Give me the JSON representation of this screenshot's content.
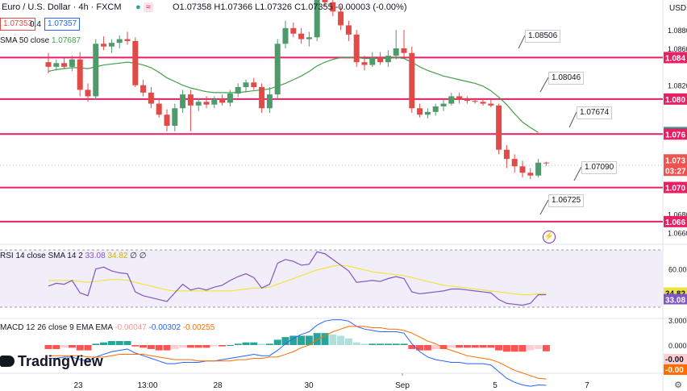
{
  "header": {
    "title": "Euro / U.S. Dollar · 4h · FXCM",
    "ohlc": "O1.07358 H1.07366 L1.07326 C1.07355 -0.00003 (-0.00%)",
    "sell_price": "1.07353",
    "spread": "0.4",
    "buy_price": "1.07357",
    "sma_label": "SMA 50 close",
    "sma_value": "1.07687",
    "currency": "USD"
  },
  "rsi_legend": {
    "label": "RSI 14 close SMA 14 2",
    "rsi_value": "33.08",
    "sma_value": "34.82",
    "extra1": "∅",
    "extra2": "∅"
  },
  "macd_legend": {
    "label": "MACD 12 26 close 9 EMA EMA",
    "histogram_value": "-0.00047",
    "macd_value": "-0.00302",
    "signal_value": "-0.00255"
  },
  "brand": "TradingView",
  "price_labels": {
    "l1": "1.08506",
    "l2": "1.08046",
    "l3": "1.07674",
    "l4": "1.07090",
    "l5": "1.06725"
  },
  "chart_data": {
    "type": "candlestick",
    "timeframe": "4h",
    "ylim": [
      1.065,
      1.0895
    ],
    "x_ticks": [
      "23",
      "13:00",
      "28",
      "30",
      "Sep",
      "5",
      "7"
    ],
    "y_ticks": [
      "1.0880",
      "1.0860",
      "1.0820",
      "1.0680",
      "1.0660"
    ],
    "price_axis_tags": [
      {
        "value": "1.084",
        "color": "#e91e63"
      },
      {
        "value": "1.080",
        "color": "#e91e63"
      },
      {
        "value": "1.076",
        "color": "#26a69a"
      },
      {
        "value": "1.076",
        "color": "#e91e63"
      },
      {
        "value": "1.073",
        "color": "#ef5350"
      },
      {
        "value": "03:27",
        "color": "#ef5350"
      },
      {
        "value": "1.070",
        "color": "#e91e63"
      },
      {
        "value": "1.066",
        "color": "#e91e63"
      }
    ],
    "horizontal_levels": [
      1.085,
      1.0805,
      1.0767,
      1.0709,
      1.0672
    ],
    "level_annotations": [
      1.08506,
      1.08046,
      1.07674,
      1.0709,
      1.06725
    ],
    "candles": [
      [
        1.0845,
        1.0855,
        1.0833,
        1.084
      ],
      [
        1.084,
        1.0848,
        1.0836,
        1.0844
      ],
      [
        1.0844,
        1.085,
        1.0838,
        1.084
      ],
      [
        1.084,
        1.0852,
        1.0835,
        1.0848
      ],
      [
        1.0848,
        1.0856,
        1.0808,
        1.0815
      ],
      [
        1.0815,
        1.0822,
        1.0802,
        1.0808
      ],
      [
        1.0808,
        1.087,
        1.0804,
        1.0865
      ],
      [
        1.0865,
        1.0873,
        1.0858,
        1.0862
      ],
      [
        1.0862,
        1.087,
        1.0855,
        1.0866
      ],
      [
        1.0866,
        1.0874,
        1.086,
        1.087
      ],
      [
        1.087,
        1.0878,
        1.0864,
        1.0868
      ],
      [
        1.0868,
        1.0872,
        1.0818,
        1.082
      ],
      [
        1.082,
        1.0826,
        1.0808,
        1.0812
      ],
      [
        1.0812,
        1.0818,
        1.0795,
        1.08
      ],
      [
        1.08,
        1.0806,
        1.0785,
        1.0788
      ],
      [
        1.0788,
        1.0794,
        1.077,
        1.0776
      ],
      [
        1.0776,
        1.08,
        1.077,
        1.0795
      ],
      [
        1.0795,
        1.0815,
        1.079,
        1.081
      ],
      [
        1.081,
        1.0815,
        1.077,
        1.0798
      ],
      [
        1.0798,
        1.0806,
        1.0792,
        1.0802
      ],
      [
        1.0802,
        1.0808,
        1.0795,
        1.0799
      ],
      [
        1.0799,
        1.0808,
        1.0795,
        1.0805
      ],
      [
        1.0805,
        1.081,
        1.0798,
        1.0801
      ],
      [
        1.0801,
        1.0815,
        1.0797,
        1.0811
      ],
      [
        1.0811,
        1.0822,
        1.0807,
        1.0818
      ],
      [
        1.0818,
        1.0826,
        1.0812,
        1.0823
      ],
      [
        1.0823,
        1.0828,
        1.0815,
        1.0818
      ],
      [
        1.0818,
        1.0822,
        1.079,
        1.0795
      ],
      [
        1.0795,
        1.0818,
        1.079,
        1.081
      ],
      [
        1.081,
        1.087,
        1.0805,
        1.0865
      ],
      [
        1.0865,
        1.089,
        1.086,
        1.0882
      ],
      [
        1.0882,
        1.0888,
        1.0872,
        1.0876
      ],
      [
        1.0876,
        1.0882,
        1.0865,
        1.087
      ],
      [
        1.087,
        1.0878,
        1.0862,
        1.0872
      ],
      [
        1.0872,
        1.0935,
        1.0868,
        1.0925
      ],
      [
        1.0925,
        1.0935,
        1.0905,
        1.091
      ],
      [
        1.091,
        1.0918,
        1.0895,
        1.09
      ],
      [
        1.09,
        1.0906,
        1.088,
        1.0885
      ],
      [
        1.0885,
        1.089,
        1.0868,
        1.0875
      ],
      [
        1.0875,
        1.088,
        1.084,
        1.0845
      ],
      [
        1.0845,
        1.0852,
        1.0836,
        1.0842
      ],
      [
        1.0842,
        1.0856,
        1.084,
        1.085
      ],
      [
        1.085,
        1.0856,
        1.0842,
        1.0845
      ],
      [
        1.0845,
        1.0858,
        1.084,
        1.0852
      ],
      [
        1.0852,
        1.088,
        1.0848,
        1.086
      ],
      [
        1.086,
        1.088,
        1.085,
        1.0855
      ],
      [
        1.0855,
        1.0862,
        1.079,
        1.0795
      ],
      [
        1.0795,
        1.08,
        1.0785,
        1.0788
      ],
      [
        1.0788,
        1.0795,
        1.0784,
        1.0791
      ],
      [
        1.0791,
        1.08,
        1.0787,
        1.0797
      ],
      [
        1.0797,
        1.0805,
        1.0792,
        1.08
      ],
      [
        1.08,
        1.0812,
        1.0798,
        1.0808
      ],
      [
        1.0808,
        1.0812,
        1.08,
        1.0805
      ],
      [
        1.0805,
        1.0808,
        1.08,
        1.0803
      ],
      [
        1.0803,
        1.0806,
        1.08,
        1.0802
      ],
      [
        1.0802,
        1.0806,
        1.0798,
        1.08
      ],
      [
        1.08,
        1.0804,
        1.0796,
        1.0798
      ],
      [
        1.0798,
        1.08,
        1.0745,
        1.075
      ],
      [
        1.075,
        1.0755,
        1.073,
        1.074
      ],
      [
        1.074,
        1.0745,
        1.0725,
        1.0732
      ],
      [
        1.0732,
        1.0738,
        1.072,
        1.0725
      ],
      [
        1.0725,
        1.073,
        1.0718,
        1.0722
      ],
      [
        1.0722,
        1.074,
        1.072,
        1.0736
      ],
      [
        1.0736,
        1.0737,
        1.07326,
        1.07355
      ]
    ],
    "sma50": [
      1.0835,
      1.0837,
      1.0838,
      1.0839,
      1.0839,
      1.0838,
      1.084,
      1.0842,
      1.0843,
      1.0844,
      1.0845,
      1.0844,
      1.0842,
      1.0839,
      1.0834,
      1.0828,
      1.0824,
      1.082,
      1.0817,
      1.0815,
      1.0813,
      1.0812,
      1.0812,
      1.0812,
      1.0812,
      1.0813,
      1.0814,
      1.0815,
      1.0816,
      1.0819,
      1.0822,
      1.0826,
      1.083,
      1.0835,
      1.0841,
      1.0845,
      1.0848,
      1.085,
      1.085,
      1.085,
      1.0849,
      1.0849,
      1.0849,
      1.0849,
      1.085,
      1.0849,
      1.0845,
      1.084,
      1.0836,
      1.0833,
      1.083,
      1.0828,
      1.0826,
      1.0824,
      1.0822,
      1.0819,
      1.0814,
      1.0807,
      1.0799,
      1.0789,
      1.078,
      1.0774,
      1.07687
    ],
    "rsi": {
      "ylim": [
        20,
        80
      ],
      "y_ticks": [
        "60.00",
        "34.82",
        "33.08",
        "3.000"
      ],
      "rsi_values": [
        42,
        45,
        44,
        48,
        35,
        32,
        60,
        62,
        58,
        56,
        55,
        36,
        32,
        30,
        28,
        26,
        35,
        44,
        38,
        40,
        38,
        41,
        43,
        48,
        52,
        55,
        51,
        40,
        44,
        66,
        70,
        68,
        64,
        65,
        78,
        76,
        70,
        64,
        58,
        46,
        47,
        48,
        47,
        50,
        52,
        50,
        36,
        34,
        35,
        36,
        37,
        39,
        39,
        38,
        37,
        36,
        35,
        28,
        24,
        23,
        22,
        24,
        33,
        33.08
      ],
      "sma_values": [
        48,
        48,
        48,
        48,
        47,
        46,
        47,
        48,
        49,
        49,
        48,
        46,
        44,
        42,
        40,
        38,
        37,
        37,
        37,
        37,
        37,
        37,
        37,
        37,
        38,
        39,
        40,
        40,
        41,
        44,
        47,
        50,
        53,
        56,
        59,
        61,
        63,
        64,
        63,
        61,
        59,
        57,
        56,
        55,
        54,
        53,
        51,
        49,
        47,
        45,
        43,
        42,
        41,
        40,
        39,
        38,
        37,
        36,
        35,
        34,
        33,
        33,
        34,
        34.82
      ]
    },
    "macd": {
      "histogram": [
        -0.0003,
        -0.0003,
        -0.0002,
        -0.0002,
        -0.0004,
        -0.0004,
        0.0001,
        0.0002,
        0.0003,
        0.0003,
        0.0003,
        -0.0001,
        -0.0002,
        -0.0003,
        -0.0004,
        -0.0004,
        -0.0003,
        -0.0002,
        -0.0002,
        -0.0002,
        -0.0002,
        -0.0001,
        -0.0001,
        0.0,
        0.0001,
        0.0002,
        0.0002,
        0.0001,
        0.0001,
        0.0004,
        0.0006,
        0.0007,
        0.0007,
        0.0007,
        0.0009,
        0.0009,
        0.0008,
        0.0007,
        0.0005,
        0.0002,
        0.0001,
        0.0001,
        0.0001,
        0.0001,
        0.0001,
        0.0001,
        -0.0003,
        -0.0004,
        -0.0004,
        -0.0003,
        -0.0003,
        -0.0002,
        -0.0002,
        -0.0002,
        -0.0002,
        -0.0002,
        -0.0002,
        -0.0004,
        -0.0005,
        -0.0005,
        -0.0005,
        -0.0004,
        -0.0003,
        -0.00047
      ],
      "macd_values": [
        -0.001,
        -0.001,
        -0.0009,
        -0.0009,
        -0.0011,
        -0.0012,
        -0.0009,
        -0.0007,
        -0.0005,
        -0.0004,
        -0.0003,
        -0.0006,
        -0.0008,
        -0.001,
        -0.0012,
        -0.0014,
        -0.0014,
        -0.0013,
        -0.0013,
        -0.0013,
        -0.0012,
        -0.0012,
        -0.0011,
        -0.001,
        -0.0009,
        -0.0008,
        -0.0007,
        -0.0008,
        -0.0008,
        -0.0004,
        0.0001,
        0.0005,
        0.0008,
        0.001,
        0.0015,
        0.0018,
        0.0019,
        0.0019,
        0.0018,
        0.0014,
        0.0012,
        0.0011,
        0.001,
        0.001,
        0.001,
        0.0009,
        0.0001,
        -0.0005,
        -0.0009,
        -0.0011,
        -0.0012,
        -0.0013,
        -0.0013,
        -0.0014,
        -0.0014,
        -0.0014,
        -0.0015,
        -0.002,
        -0.0025,
        -0.0028,
        -0.003,
        -0.0031,
        -0.003,
        -0.00302
      ],
      "signal_values": [
        -0.0008,
        -0.0008,
        -0.0008,
        -0.0008,
        -0.0008,
        -0.0009,
        -0.0009,
        -0.0009,
        -0.0008,
        -0.0007,
        -0.0007,
        -0.0007,
        -0.0007,
        -0.0008,
        -0.0009,
        -0.001,
        -0.0011,
        -0.0011,
        -0.0011,
        -0.0012,
        -0.0012,
        -0.0012,
        -0.0012,
        -0.0012,
        -0.0011,
        -0.0011,
        -0.001,
        -0.001,
        -0.0009,
        -0.0009,
        -0.0007,
        -0.0005,
        -0.0002,
        0.0,
        0.0004,
        0.0007,
        0.001,
        0.0012,
        0.0014,
        0.0014,
        0.0014,
        0.0013,
        0.0013,
        0.0012,
        0.0012,
        0.0011,
        0.0009,
        0.0006,
        0.0003,
        0.0001,
        -0.0002,
        -0.0004,
        -0.0006,
        -0.0008,
        -0.0009,
        -0.001,
        -0.0011,
        -0.0013,
        -0.0016,
        -0.0019,
        -0.0021,
        -0.0023,
        -0.0025,
        -0.00255
      ]
    }
  },
  "colors": {
    "up": "#4f9a6d",
    "down": "#e04b48",
    "sma": "#43a047",
    "level": "#e91e63",
    "rsi_line": "#7e57c2",
    "rsi_sma": "#f0e442",
    "rsi_bg": "#ede7f6",
    "macd_line": "#2962ff",
    "signal_line": "#ff6d00",
    "hist_up": "#26a69a",
    "hist_up_light": "#b2dfdb",
    "hist_down": "#ff5252",
    "hist_down_light": "#ffcdd2"
  }
}
